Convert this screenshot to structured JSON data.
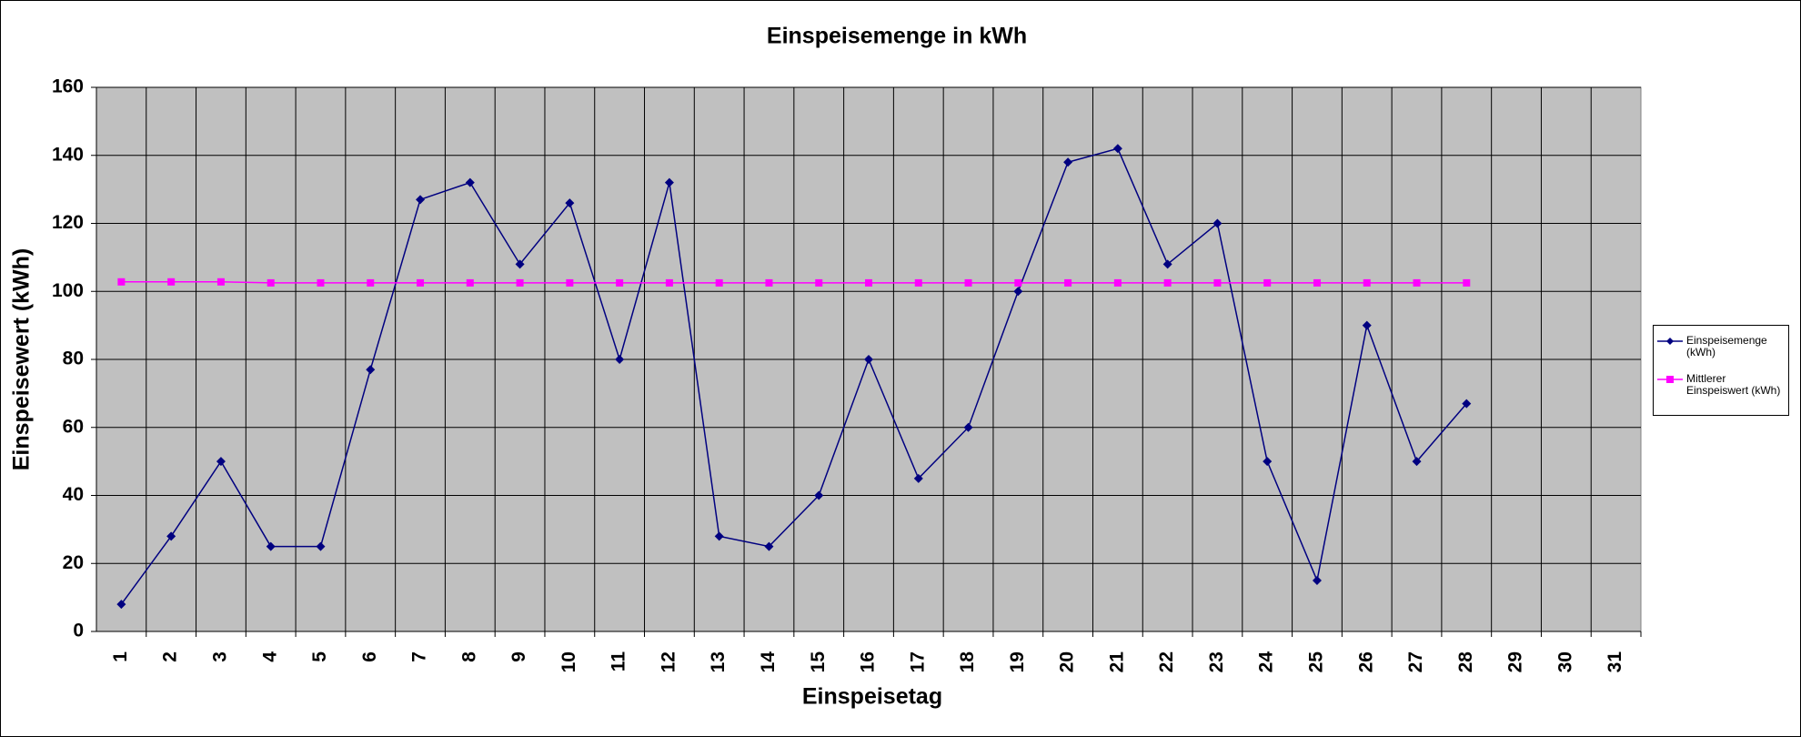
{
  "chart_data": {
    "type": "line",
    "title": "Einspeisemenge in kWh",
    "x_label": "Einspeisetag",
    "y_label": "Einspeisewert  (kWh)",
    "categories": [
      "1",
      "2",
      "3",
      "4",
      "5",
      "6",
      "7",
      "8",
      "9",
      "10",
      "11",
      "12",
      "13",
      "14",
      "15",
      "16",
      "17",
      "18",
      "19",
      "20",
      "21",
      "22",
      "23",
      "24",
      "25",
      "26",
      "27",
      "28",
      "29",
      "30",
      "31"
    ],
    "series": [
      {
        "name": "Einspeisemenge (kWh)",
        "color": "#000080",
        "marker": "diamond",
        "values": [
          8,
          28,
          50,
          25,
          25,
          77,
          127,
          132,
          108,
          126,
          80,
          132,
          28,
          25,
          40,
          80,
          45,
          60,
          100,
          138,
          142,
          108,
          120,
          50,
          15,
          90,
          50,
          67,
          null,
          null,
          null
        ]
      },
      {
        "name": "Mittlerer Einspeiswert (kWh)",
        "color": "#ff00ff",
        "marker": "square",
        "values": [
          102.8,
          102.8,
          102.8,
          102.5,
          102.5,
          102.5,
          102.5,
          102.5,
          102.5,
          102.5,
          102.5,
          102.5,
          102.5,
          102.5,
          102.5,
          102.5,
          102.5,
          102.5,
          102.5,
          102.5,
          102.5,
          102.5,
          102.5,
          102.5,
          102.5,
          102.5,
          102.5,
          102.5,
          null,
          null,
          null
        ]
      }
    ],
    "ylim": [
      0,
      160
    ],
    "yticks": [
      0,
      20,
      40,
      60,
      80,
      100,
      120,
      140,
      160
    ],
    "grid": true,
    "plot_background": "#c0c0c0",
    "legend": "right"
  }
}
